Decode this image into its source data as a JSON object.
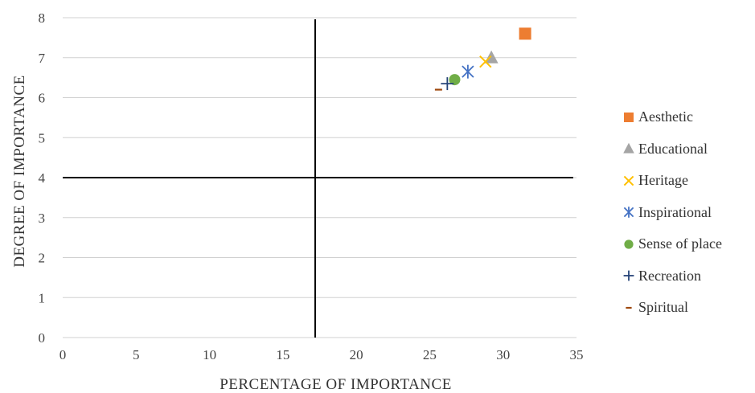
{
  "chart_data": {
    "type": "scatter",
    "title": "",
    "xlabel": "PERCENTAGE OF IMPORTANCE",
    "ylabel": "DEGREE OF IMPORTANCE",
    "xlim": [
      0,
      35
    ],
    "ylim": [
      0,
      8
    ],
    "xticks": [
      "0",
      "5",
      "10",
      "15",
      "20",
      "25",
      "30",
      "35"
    ],
    "yticks": [
      "0",
      "1",
      "2",
      "3",
      "4",
      "5",
      "6",
      "7",
      "8"
    ],
    "grid": "horizontal",
    "legend_position": "right",
    "quadrant_lines": {
      "x": 17.2,
      "y": 4
    },
    "series": [
      {
        "name": "Aesthetic",
        "marker": "square",
        "color": "#ED7D31",
        "x": 31.5,
        "y": 7.6
      },
      {
        "name": "Educational",
        "marker": "triangle",
        "color": "#A5A5A5",
        "x": 29.2,
        "y": 7.0
      },
      {
        "name": "Heritage",
        "marker": "x",
        "color": "#FFC000",
        "x": 28.8,
        "y": 6.9
      },
      {
        "name": "Inspirational",
        "marker": "star",
        "color": "#4472C4",
        "x": 27.6,
        "y": 6.65
      },
      {
        "name": "Sense of place",
        "marker": "circle",
        "color": "#70AD47",
        "x": 26.7,
        "y": 6.45
      },
      {
        "name": "Recreation",
        "marker": "plus",
        "color": "#264478",
        "x": 26.2,
        "y": 6.35
      },
      {
        "name": "Spiritual",
        "marker": "dash",
        "color": "#9E480E",
        "x": 25.6,
        "y": 6.2
      }
    ]
  }
}
